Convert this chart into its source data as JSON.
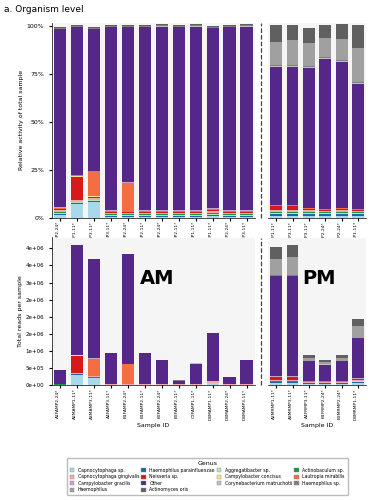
{
  "title": "a. Organism level",
  "am_samples": [
    "A1FAMP2-24*",
    "A2MAMP1-11*",
    "A3MAMP3-11*",
    "A4FAMP3-11*",
    "B1FAMP2-24*",
    "B1FAMP2-11*",
    "B2FAMP2-24*",
    "B2FAMP2-11*",
    "C2FAMP1-11*",
    "D4MAMP1-11*",
    "D4MAMP2-24*",
    "D4MAMP3-11*"
  ],
  "pm_samples": [
    "A2MRMP1-11*",
    "A3MRMP3-11*",
    "A4FRMP3-11*",
    "B1FRMP2-24*",
    "B2MRMP2-24*",
    "D4MRMP1-11*"
  ],
  "genera": [
    "Capnocytophaga sp.",
    "Haemophilus parainfluenzae",
    "Aggregatibacter sp.",
    "Actinobaculum sp.",
    "Capnocytophaga gingivalis",
    "Neisseria sp.",
    "Campylobacter concisus",
    "Lautropia mirabilis",
    "Campylobacter gracilis",
    "Other",
    "Corynebacterium matruchotii",
    "Haemophilus sp.",
    "Haemophilus",
    "Actinomyces oris"
  ],
  "colors": [
    "#a8d8ea",
    "#2166ac",
    "#b7e4b7",
    "#1a9641",
    "#f4a9a8",
    "#d7191c",
    "#fee08b",
    "#f46d43",
    "#c2a5cf",
    "#542788",
    "#c0c0c0",
    "#808080",
    "#a0a0a0",
    "#606060"
  ],
  "rel_am": [
    [
      0.015,
      0.07,
      0.08,
      0.005,
      0.005,
      0.005,
      0.005,
      0.005,
      0.005,
      0.01,
      0.005,
      0.005
    ],
    [
      0.005,
      0.005,
      0.005,
      0.005,
      0.005,
      0.005,
      0.005,
      0.005,
      0.005,
      0.005,
      0.005,
      0.005
    ],
    [
      0.005,
      0.005,
      0.005,
      0.005,
      0.005,
      0.005,
      0.005,
      0.005,
      0.005,
      0.005,
      0.005,
      0.005
    ],
    [
      0.003,
      0.003,
      0.003,
      0.003,
      0.003,
      0.003,
      0.003,
      0.003,
      0.003,
      0.003,
      0.003,
      0.003
    ],
    [
      0.01,
      0.01,
      0.01,
      0.005,
      0.005,
      0.005,
      0.005,
      0.005,
      0.005,
      0.01,
      0.005,
      0.005
    ],
    [
      0.005,
      0.12,
      0.005,
      0.005,
      0.005,
      0.005,
      0.005,
      0.005,
      0.005,
      0.005,
      0.005,
      0.005
    ],
    [
      0.003,
      0.003,
      0.003,
      0.003,
      0.003,
      0.003,
      0.003,
      0.003,
      0.003,
      0.003,
      0.003,
      0.003
    ],
    [
      0.005,
      0.005,
      0.13,
      0.005,
      0.15,
      0.005,
      0.005,
      0.005,
      0.005,
      0.005,
      0.005,
      0.005
    ],
    [
      0.003,
      0.003,
      0.003,
      0.003,
      0.003,
      0.003,
      0.003,
      0.003,
      0.003,
      0.003,
      0.003,
      0.003
    ],
    [
      0.93,
      0.77,
      0.74,
      0.955,
      0.81,
      0.955,
      0.96,
      0.955,
      0.96,
      0.94,
      0.955,
      0.96
    ],
    [
      0.003,
      0.003,
      0.003,
      0.003,
      0.003,
      0.003,
      0.003,
      0.003,
      0.003,
      0.003,
      0.003,
      0.003
    ],
    [
      0.003,
      0.003,
      0.003,
      0.003,
      0.003,
      0.003,
      0.003,
      0.003,
      0.003,
      0.003,
      0.003,
      0.003
    ],
    [
      0.003,
      0.003,
      0.003,
      0.003,
      0.003,
      0.003,
      0.003,
      0.003,
      0.003,
      0.003,
      0.003,
      0.003
    ],
    [
      0.003,
      0.003,
      0.003,
      0.003,
      0.003,
      0.003,
      0.003,
      0.003,
      0.003,
      0.003,
      0.003,
      0.003
    ]
  ],
  "rel_pm": [
    [
      0.01,
      0.01,
      0.01,
      0.01,
      0.01,
      0.01
    ],
    [
      0.01,
      0.01,
      0.01,
      0.01,
      0.01,
      0.01
    ],
    [
      0.005,
      0.005,
      0.005,
      0.005,
      0.005,
      0.005
    ],
    [
      0.003,
      0.003,
      0.003,
      0.003,
      0.003,
      0.003
    ],
    [
      0.01,
      0.01,
      0.01,
      0.005,
      0.01,
      0.005
    ],
    [
      0.02,
      0.02,
      0.005,
      0.005,
      0.005,
      0.005
    ],
    [
      0.003,
      0.003,
      0.003,
      0.003,
      0.003,
      0.003
    ],
    [
      0.003,
      0.003,
      0.003,
      0.003,
      0.003,
      0.003
    ],
    [
      0.003,
      0.003,
      0.003,
      0.003,
      0.003,
      0.003
    ],
    [
      0.72,
      0.72,
      0.73,
      0.78,
      0.76,
      0.65
    ],
    [
      0.005,
      0.005,
      0.005,
      0.005,
      0.005,
      0.005
    ],
    [
      0.005,
      0.005,
      0.005,
      0.005,
      0.005,
      0.005
    ],
    [
      0.12,
      0.13,
      0.12,
      0.1,
      0.11,
      0.18
    ],
    [
      0.09,
      0.08,
      0.08,
      0.07,
      0.08,
      0.12
    ]
  ],
  "am_reads": [
    [
      8000,
      300000,
      200000,
      5000,
      5000,
      5000,
      5000,
      5000,
      5000,
      50000,
      5000,
      5000
    ],
    [
      3000,
      10000,
      8000,
      3000,
      3000,
      3000,
      3000,
      3000,
      3000,
      5000,
      3000,
      3000
    ],
    [
      3000,
      8000,
      8000,
      3000,
      3000,
      3000,
      3000,
      3000,
      3000,
      3000,
      3000,
      3000
    ],
    [
      2000,
      5000,
      5000,
      2000,
      2000,
      2000,
      2000,
      2000,
      2000,
      2000,
      2000,
      2000
    ],
    [
      5000,
      40000,
      30000,
      5000,
      5000,
      5000,
      5000,
      5000,
      5000,
      50000,
      5000,
      5000
    ],
    [
      3000,
      500000,
      15000,
      5000,
      5000,
      5000,
      5000,
      3000,
      3000,
      3000,
      3000,
      3000
    ],
    [
      2000,
      5000,
      5000,
      2000,
      2000,
      2000,
      2000,
      2000,
      2000,
      2000,
      2000,
      2000
    ],
    [
      3000,
      20000,
      500000,
      5000,
      600000,
      5000,
      5000,
      3000,
      3000,
      3000,
      3000,
      3000
    ],
    [
      2000,
      5000,
      5000,
      2000,
      2000,
      2000,
      2000,
      2000,
      2000,
      2000,
      2000,
      2000
    ],
    [
      400000,
      3200000,
      2900000,
      900000,
      3200000,
      900000,
      700000,
      100000,
      600000,
      1400000,
      200000,
      700000
    ],
    [
      2000,
      5000,
      5000,
      2000,
      2000,
      2000,
      2000,
      2000,
      2000,
      2000,
      2000,
      2000
    ],
    [
      2000,
      5000,
      5000,
      2000,
      2000,
      2000,
      2000,
      2000,
      2000,
      2000,
      2000,
      2000
    ],
    [
      2000,
      5000,
      5000,
      2000,
      2000,
      2000,
      2000,
      2000,
      2000,
      2000,
      2000,
      2000
    ],
    [
      2000,
      5000,
      5000,
      2000,
      2000,
      2000,
      2000,
      2000,
      2000,
      2000,
      2000,
      2000
    ]
  ],
  "pm_reads": [
    [
      50000,
      50000,
      30000,
      30000,
      30000,
      60000
    ],
    [
      30000,
      30000,
      20000,
      20000,
      20000,
      40000
    ],
    [
      20000,
      20000,
      10000,
      10000,
      10000,
      20000
    ],
    [
      10000,
      10000,
      5000,
      5000,
      5000,
      10000
    ],
    [
      50000,
      50000,
      20000,
      20000,
      20000,
      30000
    ],
    [
      80000,
      80000,
      15000,
      15000,
      15000,
      20000
    ],
    [
      5000,
      5000,
      3000,
      3000,
      3000,
      5000
    ],
    [
      5000,
      5000,
      3000,
      3000,
      3000,
      5000
    ],
    [
      5000,
      5000,
      3000,
      3000,
      3000,
      5000
    ],
    [
      3000000,
      3000000,
      600000,
      500000,
      600000,
      1200000
    ],
    [
      5000,
      5000,
      3000,
      3000,
      3000,
      5000
    ],
    [
      5000,
      5000,
      3000,
      3000,
      3000,
      5000
    ],
    [
      500000,
      550000,
      100000,
      80000,
      100000,
      340000
    ],
    [
      350000,
      370000,
      70000,
      55000,
      70000,
      230000
    ]
  ],
  "panel_bg": "#f5f5f5",
  "legend_items": [
    {
      "label": "Capnocytophaga sp.",
      "color": "#a8d8ea"
    },
    {
      "label": "Capnocytophaga gingivalis",
      "color": "#f4a9a8"
    },
    {
      "label": "Campylobacter gracilis",
      "color": "#c2a5cf"
    },
    {
      "label": "Haemophilus",
      "color": "#a0a0a0"
    },
    {
      "label": "Haemophilus parainfluenzae",
      "color": "#2166ac"
    },
    {
      "label": "Neisseria sp.",
      "color": "#d7191c"
    },
    {
      "label": "Other",
      "color": "#542788"
    },
    {
      "label": "Actinomyces oris",
      "color": "#606060"
    },
    {
      "label": "Aggregatibacter sp.",
      "color": "#b7e4b7"
    },
    {
      "label": "Campylobacter concisus",
      "color": "#fee08b"
    },
    {
      "label": "Corynebacterium matruchotii",
      "color": "#c0c0c0"
    },
    {
      "label": "Actinobaculum sp.",
      "color": "#1a9641"
    },
    {
      "label": "Lautropia mirabilis",
      "color": "#f46d43"
    },
    {
      "label": "Haemophilus sp.",
      "color": "#808080"
    }
  ]
}
